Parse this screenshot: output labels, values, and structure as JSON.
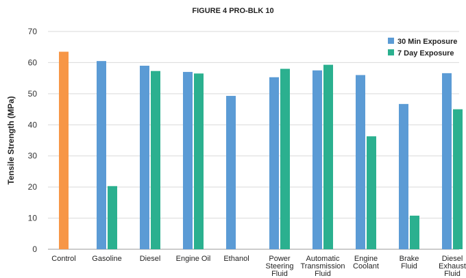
{
  "chart_data": {
    "type": "bar",
    "title": "FIGURE 4 PRO-BLK 10",
    "xlabel": "",
    "ylabel": "Tensile Strength (MPa)",
    "ylim": [
      0,
      70
    ],
    "yticks": [
      0,
      10,
      20,
      30,
      40,
      50,
      60,
      70
    ],
    "grid": true,
    "legend_position": "top-right",
    "categories": [
      [
        "Control"
      ],
      [
        "Gasoline"
      ],
      [
        "Diesel"
      ],
      [
        "Engine Oil"
      ],
      [
        "Ethanol"
      ],
      [
        "Power",
        "Steering",
        "Fluid"
      ],
      [
        "Automatic",
        "Transmission",
        "Fluid"
      ],
      [
        "Engine",
        "Coolant"
      ],
      [
        "Brake",
        "Fluid"
      ],
      [
        "Diesel",
        "Exhaust",
        "Fluid"
      ]
    ],
    "control": {
      "value": 63.5,
      "color": "#F79646"
    },
    "series": [
      {
        "name": "30 Min Exposure",
        "color": "#5B9BD5",
        "values": [
          null,
          60.5,
          59.0,
          57.0,
          49.3,
          55.3,
          57.5,
          56.0,
          46.7,
          56.6
        ]
      },
      {
        "name": "7 Day Exposure",
        "color": "#2BB08F",
        "values": [
          null,
          20.3,
          57.3,
          56.5,
          null,
          58.0,
          59.3,
          36.3,
          10.8,
          45.0
        ]
      }
    ]
  }
}
